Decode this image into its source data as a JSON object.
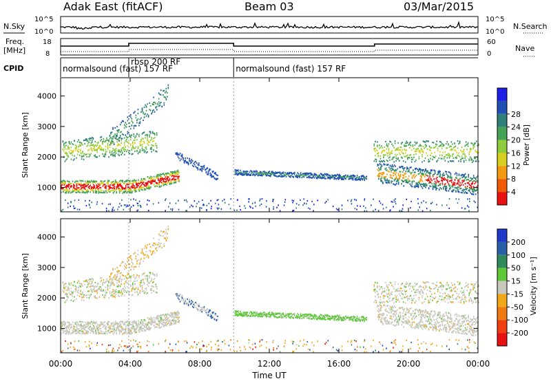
{
  "header": {
    "title": "Adak East (fitACF)",
    "beam": "Beam 03",
    "date": "03/Mar/2015"
  },
  "strips": {
    "nsky_label": "N.Sky",
    "nsky_ticks": [
      "10^5",
      "10^0"
    ],
    "nsearch_label": "N.Search",
    "nsearch_ticks": [
      "10^5",
      "10^0"
    ],
    "freq_label_1": "Freq.",
    "freq_label_2": "[MHz]",
    "freq_ticks": [
      "18",
      "8"
    ],
    "nave_label": "Nave",
    "nave_ticks": [
      "60",
      "0"
    ],
    "cpid_label": "CPID",
    "cpid_segments": [
      {
        "label": "normalsound (fast) 157 RF",
        "start": 0.0,
        "end": 3.92
      },
      {
        "label": "rbsp 200 RF",
        "start": 3.92,
        "end": 9.95
      },
      {
        "label": "normalsound (fast) 157 RF",
        "start": 9.95,
        "end": 24.0
      }
    ]
  },
  "chart_data": [
    {
      "type": "heatmap",
      "name": "power",
      "ylabel": "Slant Range [km]",
      "yticks": [
        "1000",
        "2000",
        "3000",
        "4000"
      ],
      "ylim": [
        200,
        4600
      ],
      "colorbar_label": "Power [dB]",
      "colorbar_ticks": [
        "4",
        "8",
        "12",
        "16",
        "20",
        "24",
        "28"
      ],
      "colorbar_colors": [
        "#1e1ee6",
        "#2050b4",
        "#2e7f78",
        "#45a355",
        "#8fcc3c",
        "#d8d020",
        "#f39a10",
        "#f05a05",
        "#e81010"
      ],
      "colors": {
        "low": "#1e1ee6",
        "mid": "#3c9a5c",
        "high": "#e81010"
      }
    },
    {
      "type": "heatmap",
      "name": "velocity",
      "ylabel": "Slant Range [km]",
      "yticks": [
        "1000",
        "2000",
        "3000",
        "4000"
      ],
      "ylim": [
        200,
        4600
      ],
      "colorbar_label": "Velocity [m s⁻¹]",
      "colorbar_ticks": [
        "200",
        "100",
        "50",
        "15",
        "-15",
        "-50",
        "-100",
        "-200"
      ],
      "colorbar_colors": [
        "#2038c8",
        "#2860a8",
        "#2e8a5a",
        "#5cc838",
        "#c8c8be",
        "#f0a818",
        "#f07a10",
        "#f04010",
        "#e81010"
      ],
      "colors": {
        "ground": "#c8c8be",
        "positive": "#5cc838",
        "negative": "#f0a818"
      }
    }
  ],
  "xaxis": {
    "ticks": [
      "00:00",
      "04:00",
      "08:00",
      "12:00",
      "16:00",
      "20:00",
      "00:00"
    ],
    "label": "Time UT",
    "xlim": [
      0,
      24
    ]
  }
}
